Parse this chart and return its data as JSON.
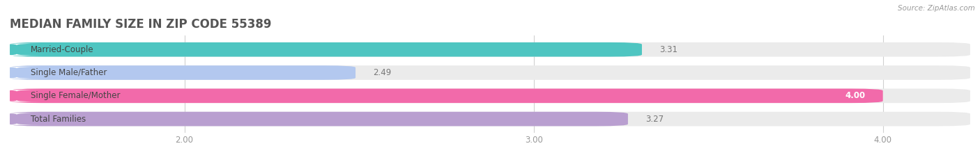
{
  "title": "MEDIAN FAMILY SIZE IN ZIP CODE 55389",
  "source": "Source: ZipAtlas.com",
  "categories": [
    "Married-Couple",
    "Single Male/Father",
    "Single Female/Mother",
    "Total Families"
  ],
  "values": [
    3.31,
    2.49,
    4.0,
    3.27
  ],
  "bar_colors": [
    "#4ec5c1",
    "#b3c8ef",
    "#f26aaa",
    "#b99fd0"
  ],
  "background_color": "#ffffff",
  "bar_bg_color": "#ebebeb",
  "xmin": 1.5,
  "xmax": 4.25,
  "xticks": [
    2.0,
    3.0,
    4.0
  ],
  "xtick_labels": [
    "2.00",
    "3.00",
    "4.00"
  ],
  "label_fontsize": 8.5,
  "value_fontsize": 8.5,
  "title_fontsize": 12,
  "source_fontsize": 7.5,
  "bar_height": 0.62
}
